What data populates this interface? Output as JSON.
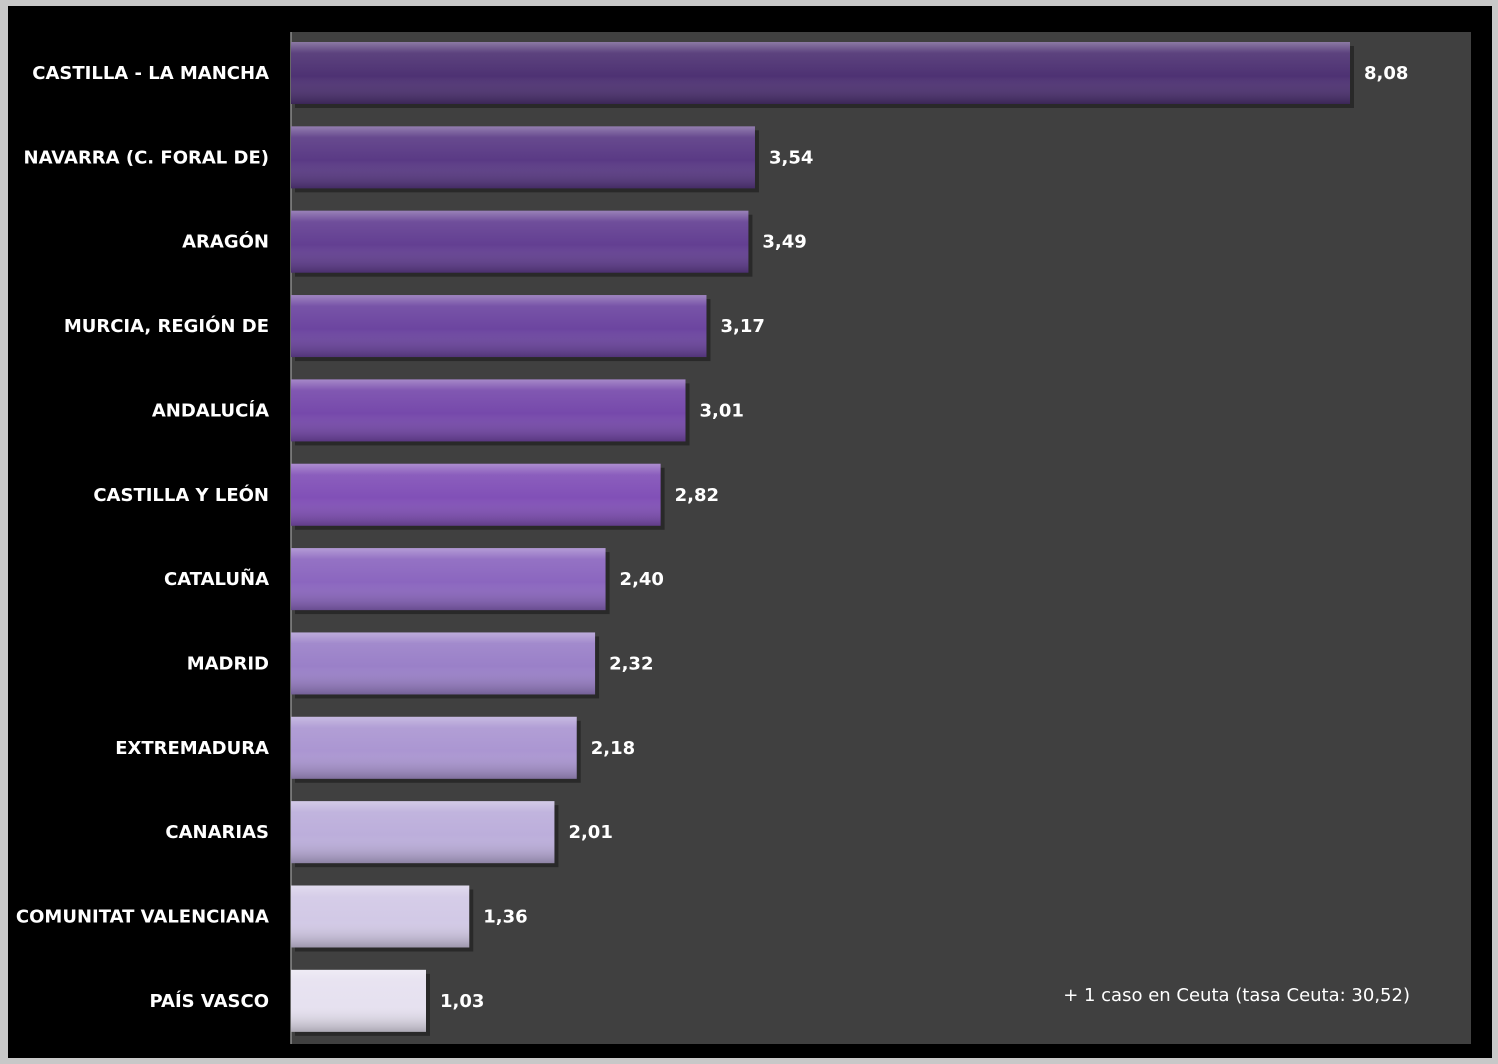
{
  "chart_data": {
    "type": "bar",
    "orientation": "horizontal",
    "categories": [
      "CASTILLA - LA MANCHA",
      "NAVARRA (C. FORAL DE)",
      "ARAGÓN",
      "MURCIA, REGIÓN DE",
      "ANDALUCÍA",
      "CASTILLA Y LEÓN",
      "CATALUÑA",
      "MADRID",
      "EXTREMADURA",
      "CANARIAS",
      "COMUNITAT VALENCIANA",
      "PAÍS VASCO"
    ],
    "values": [
      8.08,
      3.54,
      3.49,
      3.17,
      3.01,
      2.82,
      2.4,
      2.32,
      2.18,
      2.01,
      1.36,
      1.03
    ],
    "value_labels": [
      "8,08",
      "3,54",
      "3,49",
      "3,17",
      "3,01",
      "2,82",
      "2,40",
      "2,32",
      "2,18",
      "2,01",
      "1,36",
      "1,03"
    ],
    "bar_colors": [
      "#4e3273",
      "#5a3a85",
      "#633f92",
      "#6c45a0",
      "#7649ab",
      "#8150b7",
      "#8b66bf",
      "#9a80c8",
      "#ab96d2",
      "#bcaedb",
      "#d2c9e6",
      "#e6e1f0"
    ],
    "xlim": [
      0,
      9
    ],
    "title": "",
    "xlabel": "",
    "ylabel": "",
    "grid": false,
    "legend": "none",
    "annotation": "+ 1  caso en Ceuta (tasa Ceuta: 30,52)",
    "plot_background": "#404040",
    "page_background": "#000000",
    "text_color": "#ffffff"
  }
}
